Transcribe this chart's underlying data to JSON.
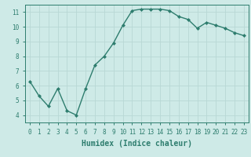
{
  "x": [
    0,
    1,
    2,
    3,
    4,
    5,
    6,
    7,
    8,
    9,
    10,
    11,
    12,
    13,
    14,
    15,
    16,
    17,
    18,
    19,
    20,
    21,
    22,
    23
  ],
  "y": [
    6.3,
    5.3,
    4.6,
    5.8,
    4.3,
    4.0,
    5.8,
    7.4,
    8.0,
    8.9,
    10.1,
    11.1,
    11.2,
    11.2,
    11.2,
    11.1,
    10.7,
    10.5,
    9.9,
    10.3,
    10.1,
    9.9,
    9.6,
    9.4
  ],
  "line_color": "#2e7d6e",
  "marker": "D",
  "marker_size": 2,
  "bg_color": "#ceeae7",
  "grid_color": "#b8d8d5",
  "xlabel": "Humidex (Indice chaleur)",
  "xlim": [
    -0.5,
    23.5
  ],
  "ylim": [
    3.5,
    11.5
  ],
  "yticks": [
    4,
    5,
    6,
    7,
    8,
    9,
    10,
    11
  ],
  "xticks": [
    0,
    1,
    2,
    3,
    4,
    5,
    6,
    7,
    8,
    9,
    10,
    11,
    12,
    13,
    14,
    15,
    16,
    17,
    18,
    19,
    20,
    21,
    22,
    23
  ],
  "xtick_labels": [
    "0",
    "1",
    "2",
    "3",
    "4",
    "5",
    "6",
    "7",
    "8",
    "9",
    "10",
    "11",
    "12",
    "13",
    "14",
    "15",
    "16",
    "17",
    "18",
    "19",
    "20",
    "21",
    "22",
    "23"
  ],
  "line_width": 1.0,
  "tick_color": "#2e7d6e",
  "label_fontsize": 6.5,
  "tick_fontsize": 5.5,
  "xlabel_fontsize": 7.0
}
